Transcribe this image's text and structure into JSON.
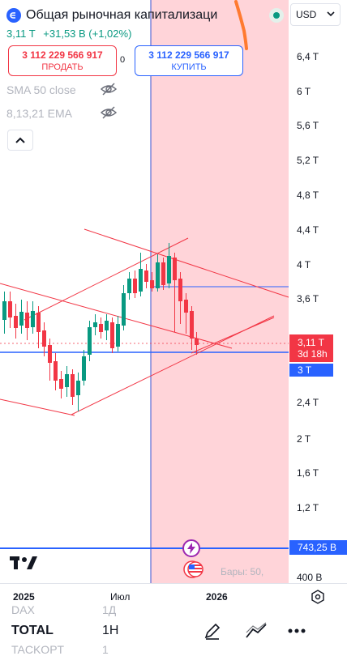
{
  "header": {
    "title": "Общая рыночная капитализаци",
    "price": "3,11 T",
    "change": "+31,53 B (+1,02%)",
    "sell_value": "3 112 229 566 917",
    "sell_label": "ПРОДАТЬ",
    "spread": "0",
    "buy_value": "3 112 229 566 917",
    "buy_label": "КУПИТЬ"
  },
  "indicators": {
    "sma": "SMA 50 close",
    "ema": "8,13,21 EMA"
  },
  "price_scale": {
    "currency": "USD",
    "labels": [
      "6,4 T",
      "6 T",
      "5,6 T",
      "5,2 T",
      "4,8 T",
      "4,4 T",
      "4 T",
      "3,6 T",
      "2,4 T",
      "2 T",
      "1,6 T",
      "1,2 T",
      "400 B"
    ],
    "current_price": "3,11 T",
    "countdown": "3d 18h",
    "line_price": "3 T",
    "bottom_line_price": "743,25 B"
  },
  "time_axis": {
    "labels": [
      "2025",
      "Июл",
      "2026"
    ]
  },
  "chart_footer": {
    "bars_text": "Бары: 50,"
  },
  "watchlist": {
    "peek_above": {
      "symbol": "DAX",
      "tf": "1Д"
    },
    "current": {
      "symbol": "TOTAL",
      "tf": "1H"
    },
    "peek_below": {
      "symbol": "TACKOPT",
      "tf": "1"
    }
  },
  "colors": {
    "up": "#089981",
    "down": "#f23645",
    "accent": "#2962ff",
    "highlight_zone": "#ffcdd2",
    "trendline": "#f23645"
  },
  "icons": [
    "logo-icon",
    "market-open-icon",
    "hidden-eye-icon",
    "chevron-up-icon",
    "chevron-down-icon",
    "tradingview-logo",
    "lightning-icon",
    "us-flag-icon",
    "settings-icon",
    "brush-icon",
    "trend-line-icon",
    "more-icon"
  ]
}
